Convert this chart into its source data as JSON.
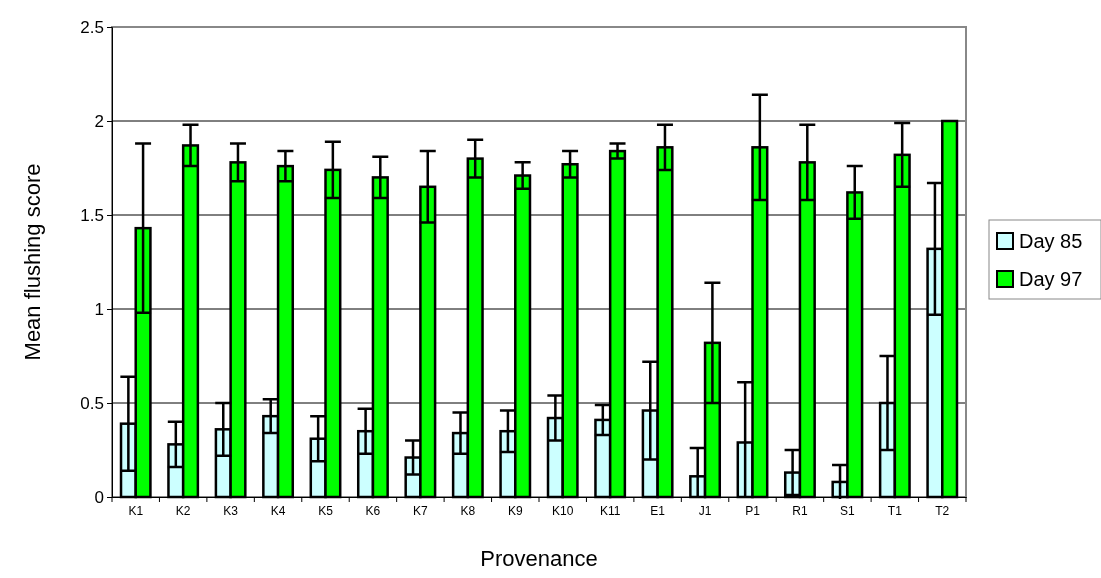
{
  "chart_data": {
    "type": "bar",
    "xlabel": "Provenance",
    "ylabel": "Mean flushing score",
    "categories": [
      "K1",
      "K2",
      "K3",
      "K4",
      "K5",
      "K6",
      "K7",
      "K8",
      "K9",
      "K10",
      "K11",
      "E1",
      "J1",
      "P1",
      "R1",
      "S1",
      "T1",
      "T2"
    ],
    "series": [
      {
        "name": "Day 85",
        "color": "#ccffff",
        "values": [
          0.39,
          0.28,
          0.36,
          0.43,
          0.31,
          0.35,
          0.21,
          0.34,
          0.35,
          0.42,
          0.41,
          0.46,
          0.11,
          0.29,
          0.13,
          0.08,
          0.5,
          1.32
        ],
        "errors": [
          0.25,
          0.12,
          0.14,
          0.09,
          0.12,
          0.12,
          0.09,
          0.11,
          0.11,
          0.12,
          0.08,
          0.26,
          [
            0,
            0.26
          ],
          [
            0,
            0.61
          ],
          0.12,
          0.09,
          0.25,
          0.35
        ]
      },
      {
        "name": "Day 97",
        "color": "#00ff00",
        "values": [
          1.43,
          1.87,
          1.78,
          1.76,
          1.74,
          1.7,
          1.65,
          1.8,
          1.71,
          1.77,
          1.84,
          1.86,
          0.82,
          1.86,
          1.78,
          1.62,
          1.82,
          2.0
        ],
        "errors": [
          0.45,
          0.11,
          0.1,
          0.08,
          0.15,
          0.11,
          0.19,
          0.1,
          0.07,
          0.07,
          0.04,
          0.12,
          0.32,
          0.28,
          0.2,
          0.14,
          0.17,
          null
        ]
      }
    ],
    "ylim": [
      0,
      2.5
    ],
    "yticks": [
      0,
      0.5,
      1,
      1.5,
      2,
      2.5
    ],
    "grid": "y",
    "legend": "right"
  }
}
